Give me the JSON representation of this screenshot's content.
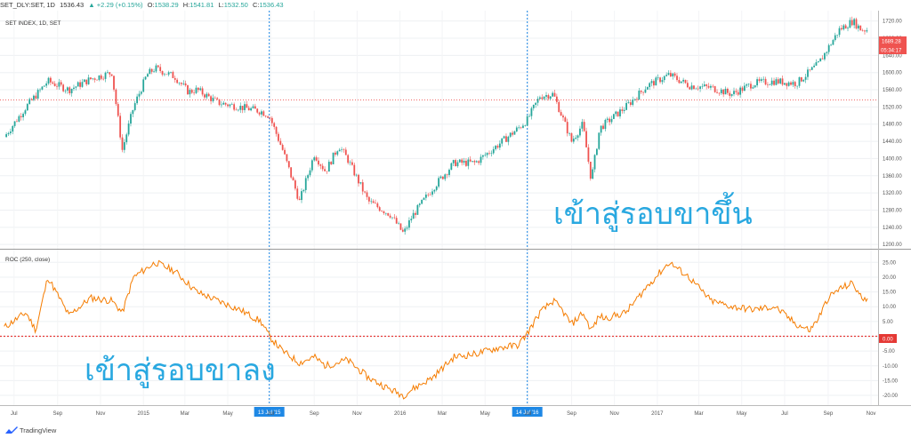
{
  "header": {
    "symbol": "SET_DLY:SET, 1D",
    "last": "1536.43",
    "change": "▲ +2.29 (+0.15%)",
    "open_label": "O:",
    "open": "1538.29",
    "high_label": "H:",
    "high": "1541.81",
    "low_label": "L:",
    "low": "1532.50",
    "close_label": "C:",
    "close": "1536.43"
  },
  "main_pane": {
    "legend": "SET INDEX, 1D, SET",
    "price_badge": "1689.28",
    "time_badge": "05:34:17",
    "annotation": "เข้าสู่รอบขาขึ้น"
  },
  "roc_pane": {
    "legend": "ROC (250, close)",
    "zero_badge": "0.00",
    "annotation": "เข้าสู่รอบขาลง"
  },
  "markers": [
    "13 Jul '15",
    "14 Jul '16"
  ],
  "footer": {
    "brand": "TradingView"
  },
  "colors": {
    "up": "#26a69a",
    "down": "#ef5350",
    "roc_line": "#f57c00",
    "marker": "#1e88e5",
    "annotation": "#29a8e0",
    "zero_line": "#e53935"
  },
  "chart_data": [
    {
      "type": "candlestick",
      "title": "SET INDEX, 1D, SET",
      "ylim": [
        1190,
        1740
      ],
      "y_ticks": [
        "1200.00",
        "1240.00",
        "1280.00",
        "1320.00",
        "1360.00",
        "1400.00",
        "1440.00",
        "1480.00",
        "1520.00",
        "1560.00",
        "1600.00",
        "1640.00",
        "1680.00",
        "1720.00"
      ],
      "x_ticks": [
        "Jul",
        "Sep",
        "Nov",
        "2015",
        "Mar",
        "May",
        "Jul",
        "Sep",
        "Nov",
        "2016",
        "Mar",
        "May",
        "Jul",
        "Sep",
        "Nov",
        "2017",
        "Mar",
        "May",
        "Jul",
        "Sep",
        "Nov"
      ],
      "close_path": [
        [
          "2014-07-01",
          1450
        ],
        [
          "2014-08-01",
          1520
        ],
        [
          "2014-09-01",
          1580
        ],
        [
          "2014-10-01",
          1560
        ],
        [
          "2014-11-01",
          1585
        ],
        [
          "2014-12-01",
          1600
        ],
        [
          "2014-12-16",
          1420
        ],
        [
          "2015-01-01",
          1520
        ],
        [
          "2015-01-20",
          1595
        ],
        [
          "2015-02-01",
          1610
        ],
        [
          "2015-03-01",
          1590
        ],
        [
          "2015-03-20",
          1555
        ],
        [
          "2015-04-01",
          1560
        ],
        [
          "2015-05-01",
          1530
        ],
        [
          "2015-06-01",
          1520
        ],
        [
          "2015-07-01",
          1510
        ],
        [
          "2015-07-13",
          1500
        ],
        [
          "2015-08-01",
          1420
        ],
        [
          "2015-08-25",
          1300
        ],
        [
          "2015-09-15",
          1410
        ],
        [
          "2015-10-01",
          1370
        ],
        [
          "2015-10-20",
          1430
        ],
        [
          "2015-11-01",
          1400
        ],
        [
          "2015-12-01",
          1300
        ],
        [
          "2016-01-01",
          1270
        ],
        [
          "2016-01-20",
          1225
        ],
        [
          "2016-02-01",
          1265
        ],
        [
          "2016-03-01",
          1330
        ],
        [
          "2016-04-01",
          1390
        ],
        [
          "2016-05-01",
          1390
        ],
        [
          "2016-06-01",
          1430
        ],
        [
          "2016-07-01",
          1470
        ],
        [
          "2016-07-14",
          1490
        ],
        [
          "2016-08-01",
          1545
        ],
        [
          "2016-08-20",
          1550
        ],
        [
          "2016-09-01",
          1500
        ],
        [
          "2016-09-15",
          1440
        ],
        [
          "2016-10-01",
          1480
        ],
        [
          "2016-10-13",
          1350
        ],
        [
          "2016-10-25",
          1470
        ],
        [
          "2016-11-01",
          1480
        ],
        [
          "2016-12-01",
          1520
        ],
        [
          "2017-01-01",
          1570
        ],
        [
          "2017-02-01",
          1595
        ],
        [
          "2017-03-01",
          1570
        ],
        [
          "2017-04-01",
          1565
        ],
        [
          "2017-05-01",
          1550
        ],
        [
          "2017-06-01",
          1575
        ],
        [
          "2017-07-01",
          1580
        ],
        [
          "2017-08-01",
          1575
        ],
        [
          "2017-09-01",
          1620
        ],
        [
          "2017-10-01",
          1700
        ],
        [
          "2017-10-20",
          1720
        ],
        [
          "2017-11-01",
          1700
        ],
        [
          "2017-11-10",
          1700
        ]
      ]
    },
    {
      "type": "line",
      "title": "ROC (250, close)",
      "ylim": [
        -23,
        29
      ],
      "y_ticks": [
        "25.00",
        "20.00",
        "15.00",
        "10.00",
        "5.00",
        "0.00",
        "-5.00",
        "-10.00",
        "-15.00",
        "-20.00"
      ],
      "series": [
        {
          "name": "ROC (250, close)",
          "points": [
            [
              "2014-07-01",
              3
            ],
            [
              "2014-08-01",
              8
            ],
            [
              "2014-08-15",
              2
            ],
            [
              "2014-09-01",
              20
            ],
            [
              "2014-09-15",
              14
            ],
            [
              "2014-10-01",
              7
            ],
            [
              "2014-11-01",
              13
            ],
            [
              "2014-12-01",
              12
            ],
            [
              "2014-12-16",
              8
            ],
            [
              "2015-01-01",
              20
            ],
            [
              "2015-02-01",
              25
            ],
            [
              "2015-03-01",
              22
            ],
            [
              "2015-04-01",
              15
            ],
            [
              "2015-05-01",
              12
            ],
            [
              "2015-06-01",
              9
            ],
            [
              "2015-07-01",
              5
            ],
            [
              "2015-07-13",
              0
            ],
            [
              "2015-08-01",
              -5
            ],
            [
              "2015-08-25",
              -9
            ],
            [
              "2015-09-15",
              -7
            ],
            [
              "2015-10-01",
              -10
            ],
            [
              "2015-11-01",
              -8
            ],
            [
              "2015-12-01",
              -14
            ],
            [
              "2016-01-01",
              -18
            ],
            [
              "2016-01-20",
              -20
            ],
            [
              "2016-02-01",
              -18
            ],
            [
              "2016-03-01",
              -14
            ],
            [
              "2016-04-01",
              -7
            ],
            [
              "2016-05-01",
              -6
            ],
            [
              "2016-06-01",
              -4
            ],
            [
              "2016-07-01",
              -3
            ],
            [
              "2016-07-14",
              1
            ],
            [
              "2016-08-01",
              8
            ],
            [
              "2016-08-20",
              12
            ],
            [
              "2016-09-01",
              9
            ],
            [
              "2016-09-15",
              4
            ],
            [
              "2016-10-01",
              8
            ],
            [
              "2016-10-13",
              2
            ],
            [
              "2016-10-25",
              7
            ],
            [
              "2016-11-01",
              6
            ],
            [
              "2016-12-01",
              8
            ],
            [
              "2017-01-01",
              17
            ],
            [
              "2017-02-01",
              25
            ],
            [
              "2017-03-01",
              20
            ],
            [
              "2017-04-01",
              12
            ],
            [
              "2017-05-01",
              10
            ],
            [
              "2017-06-01",
              9
            ],
            [
              "2017-07-01",
              10
            ],
            [
              "2017-08-01",
              4
            ],
            [
              "2017-08-20",
              2
            ],
            [
              "2017-09-01",
              6
            ],
            [
              "2017-09-15",
              13
            ],
            [
              "2017-10-01",
              16
            ],
            [
              "2017-10-20",
              18
            ],
            [
              "2017-11-01",
              13
            ],
            [
              "2017-11-10",
              13
            ]
          ]
        }
      ]
    }
  ]
}
